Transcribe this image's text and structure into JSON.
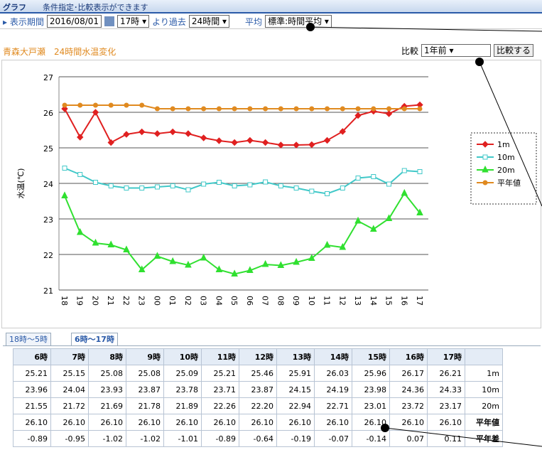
{
  "header": {
    "title": "グラフ",
    "subtitle": "条件指定･比較表示ができます"
  },
  "controls": {
    "period_label": "表示期間",
    "date": "2016/08/01",
    "hour": "17時",
    "before_label": "より過去",
    "span": "24時間",
    "average_label": "平均",
    "average": "標準:時間平均",
    "compare_label": "比較",
    "compare": "1年前",
    "compare_button": "比較する"
  },
  "station": {
    "name": "青森大戸瀬",
    "caption": "24時間水温変化"
  },
  "chart_data": {
    "type": "line",
    "ylabel": "水温(℃)",
    "categories": [
      "18",
      "19",
      "20",
      "21",
      "22",
      "23",
      "00",
      "01",
      "02",
      "03",
      "04",
      "05",
      "06",
      "07",
      "08",
      "09",
      "10",
      "11",
      "12",
      "13",
      "14",
      "15",
      "16",
      "17"
    ],
    "ylim": [
      21,
      27
    ],
    "yticks": [
      21,
      22,
      23,
      24,
      25,
      26,
      27
    ],
    "grid": true,
    "series": [
      {
        "name": "1m",
        "color": "#e02020",
        "marker": "diamond",
        "values": [
          26.1,
          25.3,
          26.0,
          25.15,
          25.38,
          25.45,
          25.4,
          25.45,
          25.4,
          25.28,
          25.2,
          25.15,
          25.21,
          25.15,
          25.08,
          25.08,
          25.09,
          25.21,
          25.46,
          25.91,
          26.03,
          25.96,
          26.17,
          26.21
        ]
      },
      {
        "name": "10m",
        "color": "#40c8c8",
        "marker": "square",
        "values": [
          24.43,
          24.25,
          24.03,
          23.93,
          23.87,
          23.87,
          23.9,
          23.93,
          23.82,
          23.98,
          24.03,
          23.93,
          23.96,
          24.04,
          23.93,
          23.87,
          23.78,
          23.71,
          23.87,
          24.15,
          24.19,
          23.98,
          24.36,
          24.33
        ]
      },
      {
        "name": "20m",
        "color": "#30e030",
        "marker": "triangle",
        "values": [
          23.65,
          22.62,
          22.32,
          22.27,
          22.13,
          21.57,
          21.95,
          21.8,
          21.7,
          21.9,
          21.57,
          21.45,
          21.55,
          21.72,
          21.69,
          21.78,
          21.89,
          22.26,
          22.2,
          22.94,
          22.71,
          23.01,
          23.72,
          23.17
        ]
      },
      {
        "name": "平年値",
        "color": "#e08a20",
        "marker": "circle",
        "values": [
          26.2,
          26.2,
          26.2,
          26.2,
          26.2,
          26.2,
          26.1,
          26.1,
          26.1,
          26.1,
          26.1,
          26.1,
          26.1,
          26.1,
          26.1,
          26.1,
          26.1,
          26.1,
          26.1,
          26.1,
          26.1,
          26.1,
          26.1,
          26.1
        ]
      }
    ]
  },
  "tabs": [
    "18時～5時",
    "6時～17時"
  ],
  "table": {
    "columns": [
      "6時",
      "7時",
      "8時",
      "9時",
      "10時",
      "11時",
      "12時",
      "13時",
      "14時",
      "15時",
      "16時",
      "17時"
    ],
    "rows": [
      {
        "label": "1m",
        "cells": [
          "25.21",
          "25.15",
          "25.08",
          "25.08",
          "25.09",
          "25.21",
          "25.46",
          "25.91",
          "26.03",
          "25.96",
          "26.17",
          "26.21"
        ]
      },
      {
        "label": "10m",
        "cells": [
          "23.96",
          "24.04",
          "23.93",
          "23.87",
          "23.78",
          "23.71",
          "23.87",
          "24.15",
          "24.19",
          "23.98",
          "24.36",
          "24.33"
        ]
      },
      {
        "label": "20m",
        "cells": [
          "21.55",
          "21.72",
          "21.69",
          "21.78",
          "21.89",
          "22.26",
          "22.20",
          "22.94",
          "22.71",
          "23.01",
          "23.72",
          "23.17"
        ]
      },
      {
        "label": "平年値",
        "cells": [
          "26.10",
          "26.10",
          "26.10",
          "26.10",
          "26.10",
          "26.10",
          "26.10",
          "26.10",
          "26.10",
          "26.10",
          "26.10",
          "26.10"
        ]
      },
      {
        "label": "平年差",
        "cells": [
          "-0.89",
          "-0.95",
          "-1.02",
          "-1.02",
          "-1.01",
          "-0.89",
          "-0.64",
          "-0.19",
          "-0.07",
          "-0.14",
          "0.07",
          "0.11"
        ]
      }
    ]
  }
}
